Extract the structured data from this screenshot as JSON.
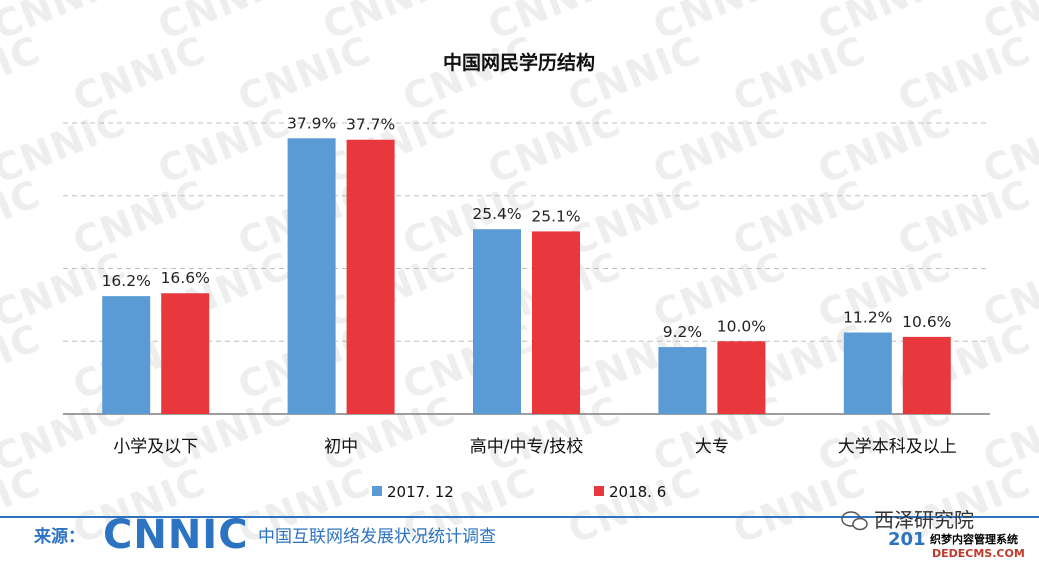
{
  "chart_data": {
    "type": "bar",
    "title": "中国网民学历结构",
    "categories": [
      "小学及以下",
      "初中",
      "高中/中专/技校",
      "大专",
      "大学本科及以上"
    ],
    "series": [
      {
        "name": "2017. 12",
        "color": "#5b9bd5",
        "values": [
          16.2,
          37.9,
          25.4,
          9.2,
          11.2
        ],
        "labels": [
          "16.2%",
          "37.9%",
          "25.4%",
          "9.2%",
          "11.2%"
        ]
      },
      {
        "name": "2018. 6",
        "color": "#e8383d",
        "values": [
          16.6,
          37.7,
          25.1,
          10.0,
          10.6
        ],
        "labels": [
          "16.6%",
          "37.7%",
          "25.1%",
          "10.0%",
          "10.6%"
        ]
      }
    ],
    "ylim": [
      0,
      40
    ],
    "gridlines": true,
    "legend_position": "bottom"
  },
  "watermark": "CNNIC",
  "footer": {
    "source_label": "来源：",
    "logo": "CNNIC",
    "subtitle": "中国互联网络发展状况统计调查",
    "brand": "西泽研究院",
    "year_partial": "201",
    "stamp_text": "织梦内容管理系统",
    "stamp_url": "DEDECMS.COM",
    "line_color": "#2c73c1"
  }
}
